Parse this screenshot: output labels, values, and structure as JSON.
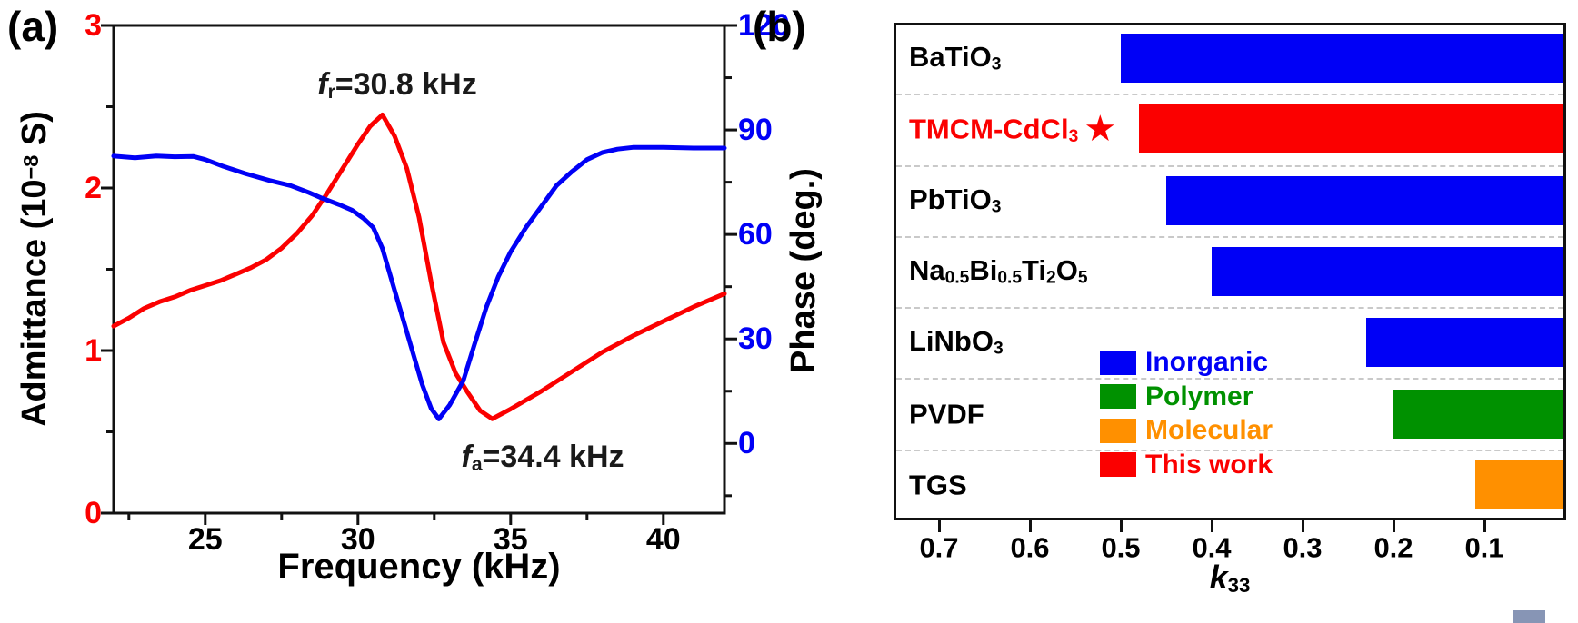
{
  "figure": {
    "panel_a_letter": "(a)",
    "panel_b_letter": "(b)",
    "corner_square_color": "#8795b5"
  },
  "chart_data": [
    {
      "panel": "a",
      "type": "line",
      "xlabel": "Frequency (kHz)",
      "xlim": [
        22,
        42
      ],
      "xticks_major": [
        25,
        30,
        35,
        40
      ],
      "xticks_minor": [
        22.5,
        27.5,
        32.5,
        37.5
      ],
      "grid": false,
      "left_axis": {
        "label_pre": "Admittance (10",
        "label_sup": "−8",
        "label_post": " S)",
        "color": "#fb0000",
        "lim": [
          0,
          3
        ],
        "ticks": [
          0,
          1,
          2,
          3
        ],
        "ticks_minor": [
          0.5,
          1.5,
          2.5
        ]
      },
      "right_axis": {
        "label": "Phase (deg.)",
        "color": "#0000f6",
        "lim": [
          -20,
          120
        ],
        "ticks": [
          0,
          30,
          60,
          90,
          120
        ],
        "ticks_minor": [
          -15,
          15,
          45,
          75,
          105
        ]
      },
      "annotations": [
        {
          "name": "resonance",
          "symbol": "f",
          "sub": "r",
          "rest": "=30.8 kHz"
        },
        {
          "name": "antiresonance",
          "symbol": "f",
          "sub": "a",
          "rest": "=34.4 kHz"
        }
      ],
      "series": [
        {
          "name": "Admittance",
          "axis": "left",
          "color": "#fb0000",
          "points": [
            [
              22,
              1.15
            ],
            [
              22.5,
              1.2
            ],
            [
              23,
              1.26
            ],
            [
              23.5,
              1.3
            ],
            [
              24,
              1.33
            ],
            [
              24.5,
              1.37
            ],
            [
              25,
              1.4
            ],
            [
              25.5,
              1.43
            ],
            [
              26,
              1.47
            ],
            [
              26.5,
              1.51
            ],
            [
              27,
              1.56
            ],
            [
              27.5,
              1.63
            ],
            [
              28,
              1.72
            ],
            [
              28.5,
              1.83
            ],
            [
              29,
              1.97
            ],
            [
              29.5,
              2.12
            ],
            [
              30,
              2.27
            ],
            [
              30.4,
              2.38
            ],
            [
              30.8,
              2.45
            ],
            [
              31.2,
              2.32
            ],
            [
              31.6,
              2.12
            ],
            [
              32,
              1.82
            ],
            [
              32.4,
              1.42
            ],
            [
              32.8,
              1.05
            ],
            [
              33.2,
              0.86
            ],
            [
              33.6,
              0.74
            ],
            [
              34,
              0.63
            ],
            [
              34.4,
              0.58
            ],
            [
              35,
              0.64
            ],
            [
              36,
              0.75
            ],
            [
              37,
              0.87
            ],
            [
              38,
              0.99
            ],
            [
              39,
              1.09
            ],
            [
              40,
              1.18
            ],
            [
              41,
              1.27
            ],
            [
              42,
              1.35
            ]
          ]
        },
        {
          "name": "Phase",
          "axis": "right",
          "color": "#0000f6",
          "points": [
            [
              22,
              82.5
            ],
            [
              22.7,
              82
            ],
            [
              23.4,
              82.5
            ],
            [
              24,
              82.3
            ],
            [
              24.6,
              82.4
            ],
            [
              25,
              81.5
            ],
            [
              25.6,
              79.5
            ],
            [
              26.3,
              77.5
            ],
            [
              27.1,
              75.5
            ],
            [
              27.8,
              74
            ],
            [
              28.4,
              72
            ],
            [
              28.8,
              70.5
            ],
            [
              29.4,
              68.5
            ],
            [
              29.8,
              67
            ],
            [
              30.2,
              64.5
            ],
            [
              30.5,
              62
            ],
            [
              30.8,
              56
            ],
            [
              31,
              50
            ],
            [
              31.2,
              44
            ],
            [
              31.5,
              35
            ],
            [
              31.8,
              26
            ],
            [
              32.1,
              17
            ],
            [
              32.4,
              10
            ],
            [
              32.65,
              7
            ],
            [
              33,
              11
            ],
            [
              33.45,
              18
            ],
            [
              33.8,
              28
            ],
            [
              34.2,
              39
            ],
            [
              34.6,
              48
            ],
            [
              35,
              55
            ],
            [
              35.5,
              62
            ],
            [
              36,
              68
            ],
            [
              36.5,
              74
            ],
            [
              37,
              78
            ],
            [
              37.5,
              81.5
            ],
            [
              38,
              83.5
            ],
            [
              38.5,
              84.5
            ],
            [
              39,
              85
            ],
            [
              40,
              85
            ],
            [
              41,
              84.8
            ],
            [
              42,
              84.8
            ]
          ]
        }
      ]
    },
    {
      "panel": "b",
      "type": "bar",
      "orientation": "horizontal",
      "axis_reversed": true,
      "xlabel_symbol": "k",
      "xlabel_sub": "33",
      "xlim": [
        0.75,
        0.01
      ],
      "xticks": [
        0.7,
        0.6,
        0.5,
        0.4,
        0.3,
        0.2,
        0.1
      ],
      "star_symbol": "★",
      "rows": [
        {
          "label": "BaTiO~3~",
          "value": 0.5,
          "group": "Inorganic",
          "color": "#0000f6",
          "label_color": "#000000",
          "star": false
        },
        {
          "label": "TMCM-CdCl~3~",
          "value": 0.48,
          "group": "This work",
          "color": "#fb0000",
          "label_color": "#fb0000",
          "star": true
        },
        {
          "label": "PbTiO~3~",
          "value": 0.45,
          "group": "Inorganic",
          "color": "#0000f6",
          "label_color": "#000000",
          "star": false
        },
        {
          "label": "Na~0.5~Bi~0.5~Ti~2~O~5~",
          "value": 0.4,
          "group": "Inorganic",
          "color": "#0000f6",
          "label_color": "#000000",
          "star": false
        },
        {
          "label": "LiNbO~3~",
          "value": 0.23,
          "group": "Inorganic",
          "color": "#0000f6",
          "label_color": "#000000",
          "star": false
        },
        {
          "label": "PVDF",
          "value": 0.2,
          "group": "Polymer",
          "color": "#009100",
          "label_color": "#000000",
          "star": false
        },
        {
          "label": "TGS",
          "value": 0.11,
          "group": "Molecular",
          "color": "#ff9000",
          "label_color": "#000000",
          "star": false
        }
      ],
      "legend": [
        {
          "label": "Inorganic",
          "color": "#0000f6"
        },
        {
          "label": "Polymer",
          "color": "#009100"
        },
        {
          "label": "Molecular",
          "color": "#ff9000"
        },
        {
          "label": "This work",
          "color": "#fb0000"
        }
      ],
      "legend_position": "center-left"
    }
  ]
}
